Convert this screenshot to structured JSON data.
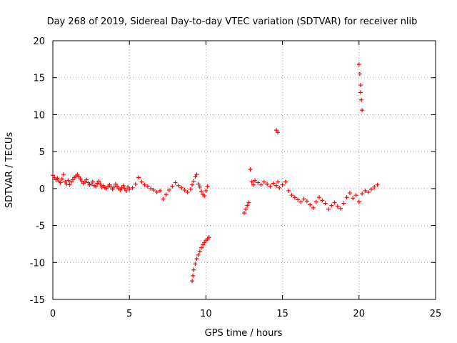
{
  "chart_data": {
    "type": "scatter",
    "title": "Day 268 of 2019, Sidereal Day-to-day VTEC variation (SDTVAR) for receiver nlib",
    "xlabel": "GPS time / hours",
    "ylabel": "SDTVAR / TECUs",
    "xlim": [
      0,
      25
    ],
    "ylim": [
      -15,
      20
    ],
    "xticks": [
      0,
      5,
      10,
      15,
      20,
      25
    ],
    "xtick_labels": [
      "0",
      "5",
      "10",
      "15",
      "20",
      "25"
    ],
    "yticks": [
      -15,
      -10,
      -5,
      0,
      5,
      10,
      15,
      20
    ],
    "ytick_labels": [
      "-15",
      "-10",
      "-5",
      "0",
      "5",
      "10",
      "15",
      "20"
    ],
    "grid": true,
    "marker": "+",
    "series_color": "#ff0000",
    "series": [
      {
        "name": "SDTVAR",
        "x": [
          0.0,
          0.1,
          0.2,
          0.3,
          0.4,
          0.5,
          0.6,
          0.7,
          0.8,
          0.9,
          1.0,
          1.1,
          1.2,
          1.3,
          1.4,
          1.5,
          1.6,
          1.7,
          1.8,
          1.9,
          2.0,
          2.1,
          2.2,
          2.3,
          2.4,
          2.5,
          2.6,
          2.7,
          2.8,
          2.9,
          3.0,
          3.1,
          3.2,
          3.3,
          3.4,
          3.5,
          3.6,
          3.7,
          3.8,
          3.9,
          4.0,
          4.1,
          4.2,
          4.3,
          4.4,
          4.5,
          4.6,
          4.7,
          4.8,
          4.9,
          5.0,
          5.2,
          5.4,
          5.6,
          5.8,
          6.0,
          6.2,
          6.4,
          6.6,
          6.8,
          7.0,
          7.2,
          7.4,
          7.6,
          7.8,
          8.0,
          8.2,
          8.4,
          8.6,
          8.8,
          9.0,
          9.1,
          9.2,
          9.3,
          9.4,
          9.5,
          9.6,
          9.7,
          9.8,
          9.9,
          10.0,
          10.1,
          9.1,
          9.15,
          9.2,
          9.3,
          9.4,
          9.5,
          9.6,
          9.7,
          9.8,
          9.9,
          10.0,
          10.1,
          10.2,
          12.5,
          12.6,
          12.7,
          12.8,
          12.9,
          13.0,
          13.1,
          13.2,
          13.4,
          13.6,
          13.8,
          14.0,
          14.2,
          14.4,
          14.6,
          14.7,
          14.8,
          15.0,
          15.2,
          15.4,
          15.6,
          15.8,
          16.0,
          16.2,
          16.4,
          16.6,
          16.8,
          17.0,
          17.2,
          17.4,
          17.6,
          17.8,
          18.0,
          18.2,
          18.4,
          18.6,
          18.8,
          19.0,
          19.2,
          19.4,
          19.6,
          19.8,
          20.0,
          20.2,
          20.4,
          20.6,
          20.8,
          21.0,
          21.2,
          14.6,
          14.7,
          20.0,
          20.05,
          20.1,
          20.1,
          20.15,
          20.2
        ],
        "y": [
          1.8,
          1.5,
          1.2,
          1.4,
          1.0,
          0.8,
          1.3,
          1.9,
          0.9,
          0.6,
          1.1,
          0.5,
          0.9,
          1.2,
          1.5,
          1.7,
          1.9,
          1.6,
          1.3,
          1.0,
          0.7,
          0.9,
          1.2,
          0.8,
          0.5,
          0.6,
          0.9,
          0.4,
          0.3,
          0.7,
          1.0,
          0.6,
          0.2,
          0.4,
          0.1,
          0.0,
          0.3,
          0.5,
          0.2,
          -0.1,
          0.2,
          0.6,
          0.3,
          0.0,
          -0.2,
          0.1,
          0.4,
          0.0,
          -0.3,
          0.2,
          -0.1,
          0.1,
          0.6,
          1.5,
          0.9,
          0.5,
          0.3,
          0.0,
          -0.2,
          -0.5,
          -0.3,
          -1.4,
          -0.8,
          -0.2,
          0.3,
          0.8,
          0.4,
          0.1,
          -0.2,
          -0.5,
          -0.1,
          0.5,
          1.0,
          1.6,
          1.9,
          0.6,
          0.2,
          -0.4,
          -0.8,
          -1.0,
          -0.3,
          0.3,
          -12.5,
          -11.8,
          -11.0,
          -10.2,
          -9.5,
          -9.0,
          -8.5,
          -8.0,
          -7.6,
          -7.3,
          -7.0,
          -6.8,
          -6.6,
          -3.3,
          -2.8,
          -2.3,
          -1.9,
          2.6,
          0.9,
          0.5,
          1.1,
          0.8,
          0.5,
          0.9,
          0.6,
          0.3,
          0.7,
          0.4,
          0.9,
          0.1,
          0.5,
          0.9,
          -0.3,
          -0.9,
          -1.2,
          -1.5,
          -1.8,
          -1.4,
          -1.7,
          -2.2,
          -2.6,
          -1.8,
          -1.2,
          -1.6,
          -2.0,
          -2.8,
          -2.3,
          -1.9,
          -2.4,
          -2.7,
          -2.0,
          -1.2,
          -0.6,
          -1.3,
          -0.9,
          -1.8,
          -0.7,
          -0.3,
          -0.5,
          -0.1,
          0.2,
          0.5,
          7.9,
          7.6,
          16.8,
          15.5,
          14.0,
          13.0,
          12.0,
          10.6
        ]
      }
    ]
  }
}
